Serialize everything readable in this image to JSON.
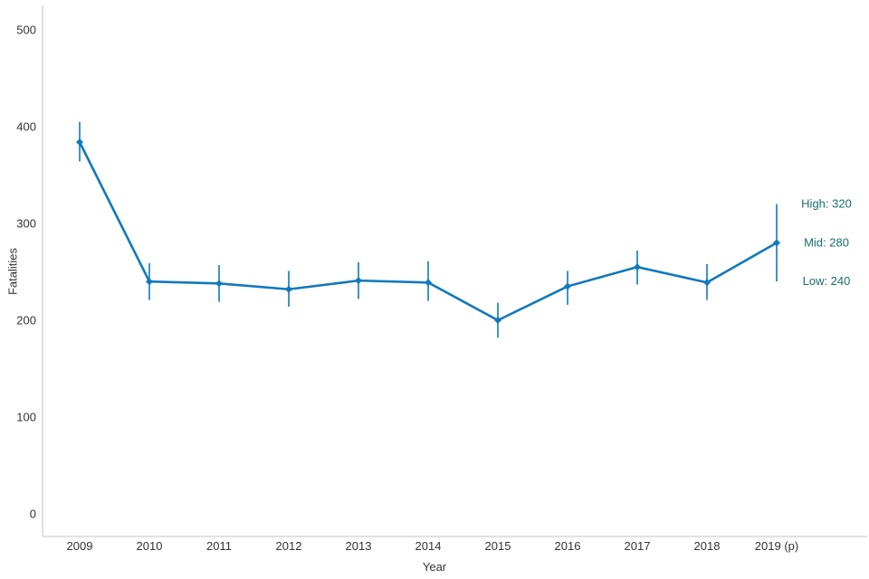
{
  "chart_data": {
    "type": "line",
    "title": "",
    "xlabel": "Year",
    "ylabel": "Fatalities",
    "categories": [
      "2009",
      "2010",
      "2011",
      "2012",
      "2013",
      "2014",
      "2015",
      "2016",
      "2017",
      "2018",
      "2019 (p)"
    ],
    "series": [
      {
        "name": "Fatalities",
        "values": [
          384,
          240,
          238,
          232,
          241,
          239,
          200,
          235,
          255,
          239,
          280
        ],
        "error_low": [
          364,
          221,
          219,
          214,
          222,
          220,
          182,
          216,
          237,
          221,
          240
        ],
        "error_high": [
          405,
          259,
          257,
          251,
          260,
          261,
          218,
          251,
          272,
          258,
          320
        ]
      }
    ],
    "yticks": [
      0,
      100,
      200,
      300,
      400,
      500
    ],
    "ylim": [
      0,
      500
    ],
    "grid": false,
    "legend": "none",
    "marker": "diamond",
    "annotations": [
      {
        "label": "High: 320",
        "value": 320
      },
      {
        "label": "Mid: 280",
        "value": 280
      },
      {
        "label": "Low: 240",
        "value": 240
      }
    ]
  },
  "colors": {
    "line": "#1178bd",
    "error_bar": "#1178bd",
    "annotation_text": "#1a6e6e",
    "axis_line": "#d0d0d0",
    "tick_text": "#333333"
  }
}
